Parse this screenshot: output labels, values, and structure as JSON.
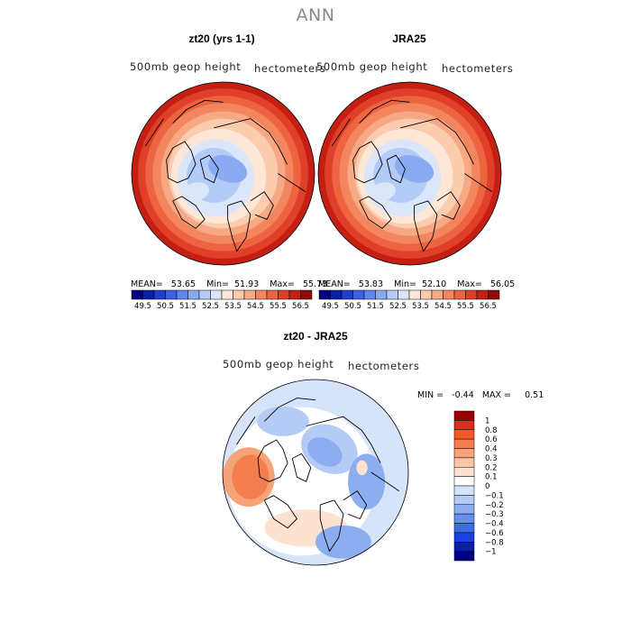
{
  "title": "ANN",
  "panels": [
    {
      "id": "model",
      "title": "zt20 (yrs 1-1)",
      "variable": "500mb geop height",
      "units": "hectometers",
      "stats": {
        "mean_label": "MEAN=",
        "mean": "53.65",
        "min_label": "Min=",
        "min": "51.93",
        "max_label": "Max=",
        "max": "55.73"
      }
    },
    {
      "id": "obs",
      "title": "JRA25",
      "variable": "500mb geop height",
      "units": "hectometers",
      "stats": {
        "mean_label": "MEAN=",
        "mean": "53.83",
        "min_label": "Min=",
        "min": "52.10",
        "max_label": "Max=",
        "max": "56.05"
      }
    },
    {
      "id": "diff",
      "title": "zt20 - JRA25",
      "variable": "500mb geop height",
      "units": "hectometers",
      "stats": {
        "min_label": "MIN =",
        "min": "-0.44",
        "max_label": "MAX =",
        "max": "0.51"
      }
    }
  ],
  "chart_data": [
    {
      "type": "heatmap",
      "projection": "polar stereographic (north pole)",
      "title": "zt20 (yrs 1-1)",
      "variable": "500mb geop height",
      "units": "hectometers",
      "mean": 53.65,
      "min": 51.93,
      "max": 55.73,
      "colorbar": {
        "levels": [
          49.5,
          50.5,
          51.5,
          52.5,
          53.5,
          54.5,
          55.5,
          56.5
        ],
        "colors": [
          "#000080",
          "#0a1fa6",
          "#1f3fd0",
          "#3a62e6",
          "#5f86ee",
          "#8aaaf2",
          "#b4cbf7",
          "#dbe6fb",
          "#fde8d8",
          "#fbccae",
          "#f7a884",
          "#f4865f",
          "#ee6440",
          "#e0402a",
          "#c41f12",
          "#8f0a0a"
        ],
        "position": "bottom"
      }
    },
    {
      "type": "heatmap",
      "projection": "polar stereographic (north pole)",
      "title": "JRA25",
      "variable": "500mb geop height",
      "units": "hectometers",
      "mean": 53.83,
      "min": 52.1,
      "max": 56.05,
      "colorbar": {
        "levels": [
          49.5,
          50.5,
          51.5,
          52.5,
          53.5,
          54.5,
          55.5,
          56.5
        ],
        "colors": [
          "#000080",
          "#0a1fa6",
          "#1f3fd0",
          "#3a62e6",
          "#5f86ee",
          "#8aaaf2",
          "#b4cbf7",
          "#dbe6fb",
          "#fde8d8",
          "#fbccae",
          "#f7a884",
          "#f4865f",
          "#ee6440",
          "#e0402a",
          "#c41f12",
          "#8f0a0a"
        ],
        "position": "bottom"
      }
    },
    {
      "type": "heatmap",
      "projection": "polar stereographic (north pole)",
      "title": "zt20 - JRA25",
      "variable": "500mb geop height",
      "units": "hectometers",
      "min": -0.44,
      "max": 0.51,
      "colorbar": {
        "levels": [
          "1",
          "0.8",
          "0.6",
          "0.4",
          "0.3",
          "0.2",
          "0.1",
          "0",
          "−0.1",
          "−0.2",
          "−0.3",
          "−0.4",
          "−0.6",
          "−0.8",
          "−1"
        ],
        "colors": [
          "#990000",
          "#d7301f",
          "#f05a2a",
          "#f47e50",
          "#f7a37a",
          "#fac6a6",
          "#fde2d0",
          "#ffffff",
          "#d6e4fa",
          "#b3cbf5",
          "#8cadf0",
          "#6690ec",
          "#3e6be8",
          "#1c3fe0",
          "#0a1eaa",
          "#000080"
        ],
        "position": "right"
      }
    }
  ]
}
